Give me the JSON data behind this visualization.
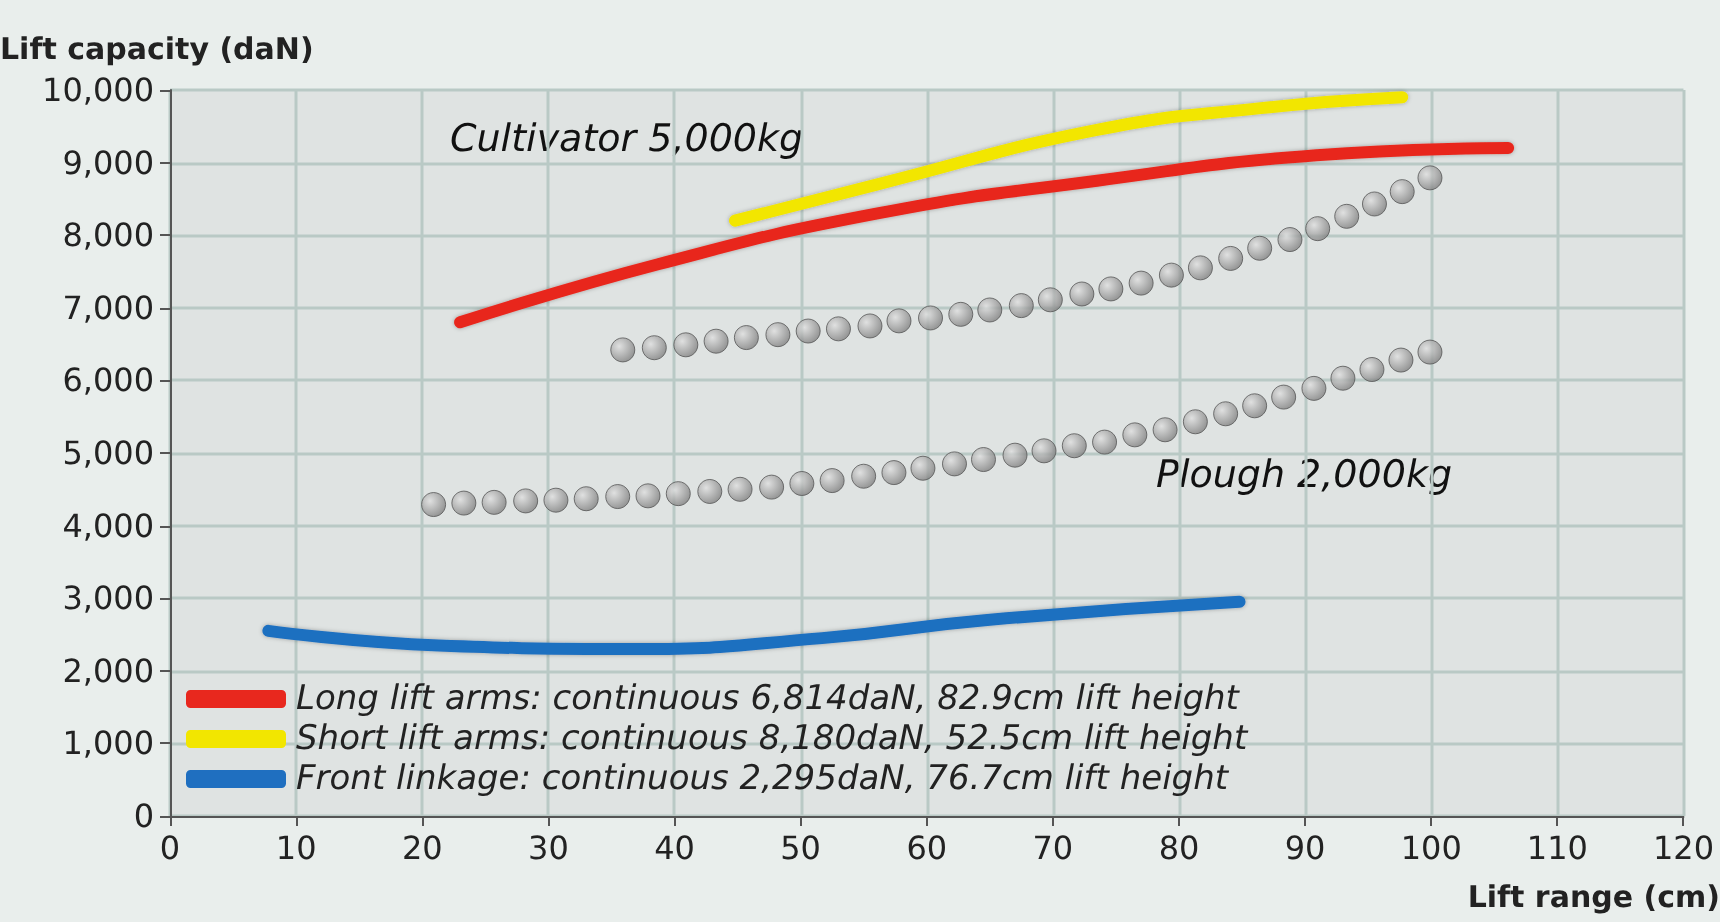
{
  "chart_data": {
    "type": "line",
    "xlabel": "Lift range (cm)",
    "ylabel": "Lift capacity (daN)",
    "xlim": [
      0,
      120
    ],
    "xticks": [
      0,
      10,
      20,
      30,
      40,
      50,
      60,
      70,
      80,
      90,
      100,
      110,
      120
    ],
    "ylim": [
      0,
      10000
    ],
    "yticks": [
      0,
      {
        "value": 1000,
        "label": "1,000"
      },
      {
        "value": 2000,
        "label": "2,000"
      },
      {
        "value": 3000,
        "label": "3,000"
      },
      {
        "value": 4000,
        "label": "4,000"
      },
      {
        "value": 5000,
        "label": "5,000"
      },
      {
        "value": 6000,
        "label": "6,000"
      },
      {
        "value": 7000,
        "label": "7,000"
      },
      {
        "value": 8000,
        "label": "8,000"
      },
      {
        "value": 9000,
        "label": "9,000"
      },
      {
        "value": 10000,
        "label": "10,000"
      }
    ],
    "grid": true,
    "legend": "bottom left",
    "marker": "none",
    "line_style": "solid",
    "annotations": [
      "Cultivator 5,000kg",
      "Plough 2,000kg"
    ],
    "series": [
      {
        "name": "Long lift arms: continuous 6,814daN, 82.9cm lift height",
        "color": "#e8281e",
        "x": [
          23,
          38.7,
          56.1,
          73.5,
          90.9,
          106.1
        ],
        "values": [
          6800,
          7600,
          8300,
          8750,
          9100,
          9200
        ]
      },
      {
        "name": "Short lift arms: continuous 8,180daN, 52.5cm lift height",
        "color": "#f2e600",
        "x": [
          44.8,
          56.1,
          73.5,
          86.5,
          97.7
        ],
        "values": [
          8200,
          8700,
          9450,
          9750,
          9900
        ]
      },
      {
        "name": "Front linkage: continuous 2,295daN, 76.7cm lift height",
        "color": "#1f6fc0",
        "x": [
          7.8,
          21.3,
          36.9,
          51.7,
          64.8,
          84.8
        ],
        "values": [
          2550,
          2350,
          2300,
          2450,
          2700,
          2950
        ]
      },
      {
        "type": "scatter",
        "marker": "circle",
        "color": "#808080",
        "x": [
          35.9,
          38.4,
          40.9,
          43.3,
          45.7,
          48.2,
          50.6,
          53,
          55.5,
          57.8,
          60.3,
          62.7,
          65,
          67.5,
          69.8,
          72.3,
          74.6,
          77,
          79.4,
          81.7,
          84.1,
          86.4,
          88.8,
          91,
          93.3,
          95.5,
          97.7,
          99.9
        ],
        "values": [
          6420,
          6450,
          6490,
          6540,
          6590,
          6630,
          6680,
          6710,
          6750,
          6820,
          6860,
          6910,
          6970,
          7030,
          7110,
          7190,
          7260,
          7340,
          7450,
          7550,
          7680,
          7820,
          7940,
          8090,
          8260,
          8430,
          8600,
          8790
        ]
      },
      {
        "type": "scatter",
        "marker": "circle",
        "color": "#808080",
        "x": [
          20.9,
          23.3,
          25.7,
          28.2,
          30.6,
          33,
          35.5,
          37.9,
          40.3,
          42.8,
          45.2,
          47.7,
          50.1,
          52.5,
          55,
          57.4,
          59.7,
          62.2,
          64.5,
          67,
          69.3,
          71.7,
          74.1,
          76.5,
          78.9,
          81.3,
          83.7,
          86,
          88.3,
          90.7,
          93,
          95.3,
          97.6,
          99.9
        ],
        "values": [
          4290,
          4310,
          4320,
          4340,
          4350,
          4370,
          4400,
          4410,
          4440,
          4470,
          4500,
          4530,
          4580,
          4620,
          4680,
          4730,
          4790,
          4850,
          4910,
          4970,
          5030,
          5100,
          5150,
          5250,
          5320,
          5430,
          5540,
          5650,
          5770,
          5890,
          6030,
          6150,
          6280,
          6390
        ]
      }
    ]
  }
}
